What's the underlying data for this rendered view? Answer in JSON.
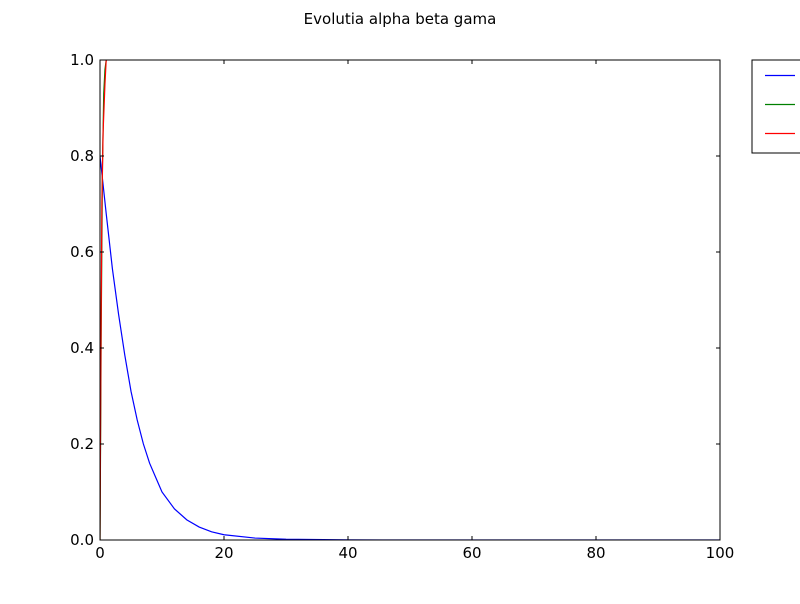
{
  "chart_data": {
    "type": "line",
    "title": "Evolutia alpha beta gama",
    "xlabel": "",
    "ylabel": "",
    "xlim": [
      0,
      100
    ],
    "ylim": [
      0,
      1
    ],
    "x_ticks": [
      "0",
      "20",
      "40",
      "60",
      "80",
      "100"
    ],
    "y_ticks": [
      "0.0",
      "0.2",
      "0.4",
      "0.6",
      "0.8",
      "1.0"
    ],
    "grid": false,
    "legend_position": "outside-top-right",
    "series": [
      {
        "color": "#0000ff",
        "x": [
          0,
          1,
          2,
          3,
          4,
          5,
          6,
          7,
          8,
          9,
          10,
          12,
          14,
          16,
          18,
          20,
          25,
          30,
          40,
          60,
          80,
          100
        ],
        "y": [
          0.8,
          0.68,
          0.565,
          0.47,
          0.385,
          0.31,
          0.25,
          0.2,
          0.16,
          0.13,
          0.1,
          0.065,
          0.042,
          0.027,
          0.017,
          0.011,
          0.004,
          0.0015,
          0.0002,
          0.0,
          0.0,
          0.0
        ]
      },
      {
        "color": "#008000",
        "x": [
          0,
          0.2,
          0.4,
          0.6,
          0.8,
          1.0
        ],
        "y": [
          0.0,
          0.45,
          0.78,
          0.93,
          0.98,
          1.0
        ]
      },
      {
        "color": "#ff0000",
        "x": [
          0,
          0.15,
          0.3,
          0.5,
          0.8,
          1.0
        ],
        "y": [
          0.0,
          0.4,
          0.7,
          0.85,
          0.95,
          1.0
        ]
      }
    ]
  }
}
